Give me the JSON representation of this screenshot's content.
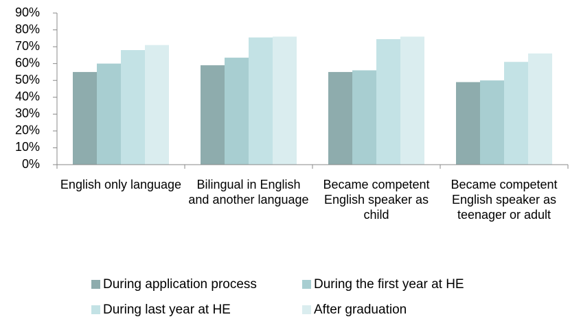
{
  "chart_data": {
    "type": "bar",
    "categories": [
      "English only language",
      "Bilingual in English and another language",
      "Became competent English speaker as child",
      "Became competent English speaker as teenager or adult"
    ],
    "series": [
      {
        "name": "During application process",
        "color": "#8eacad",
        "values": [
          55,
          59,
          55,
          49
        ]
      },
      {
        "name": "During the first year at HE",
        "color": "#a8ced1",
        "values": [
          60,
          63.5,
          56,
          50
        ]
      },
      {
        "name": "During last year at HE",
        "color": "#c3e2e5",
        "values": [
          68,
          75.5,
          74.5,
          61
        ]
      },
      {
        "name": "After graduation",
        "color": "#daedef",
        "values": [
          71,
          76,
          76,
          66
        ]
      }
    ],
    "ylim": [
      0,
      90
    ],
    "yticks": [
      {
        "value": 0,
        "label": "0%"
      },
      {
        "value": 10,
        "label": "10%"
      },
      {
        "value": 20,
        "label": "20%"
      },
      {
        "value": 30,
        "label": "30%"
      },
      {
        "value": 40,
        "label": "40%"
      },
      {
        "value": 50,
        "label": "50%"
      },
      {
        "value": 60,
        "label": "60%"
      },
      {
        "value": 70,
        "label": "70%"
      },
      {
        "value": 80,
        "label": "80%"
      },
      {
        "value": 90,
        "label": "90%"
      }
    ],
    "grid": false,
    "legend": "bottom"
  }
}
